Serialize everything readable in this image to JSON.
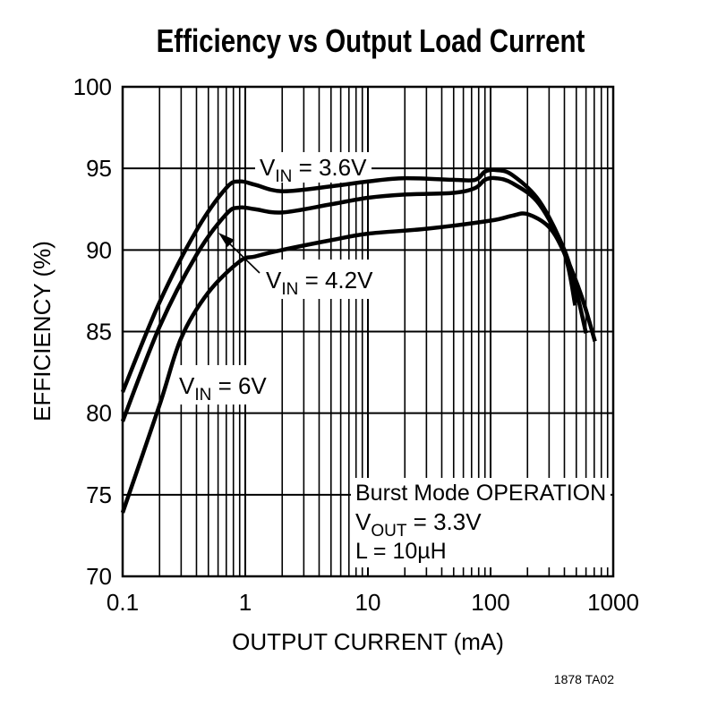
{
  "chart_data": {
    "type": "line",
    "title": "Efficiency vs Output Load Current",
    "xlabel": "OUTPUT CURRENT (mA)",
    "ylabel": "EFFICIENCY (%)",
    "xscale": "log",
    "xlim": [
      0.1,
      1000
    ],
    "ylim": [
      70,
      100
    ],
    "grid": true,
    "xticks": [
      0.1,
      1,
      10,
      100,
      1000
    ],
    "xtick_labels": [
      "0.1",
      "1",
      "10",
      "100",
      "1000"
    ],
    "yticks": [
      70,
      75,
      80,
      85,
      90,
      95,
      100
    ],
    "ytick_labels": [
      "70",
      "75",
      "80",
      "85",
      "90",
      "95",
      "100"
    ],
    "series": [
      {
        "name": "VIN = 3.6V",
        "label_main": "V",
        "label_sub": "IN",
        "label_rest": " = 3.6V",
        "x": [
          0.1,
          0.2,
          0.4,
          0.7,
          0.9,
          1.2,
          2,
          5,
          10,
          20,
          50,
          75,
          90,
          110,
          150,
          250,
          400,
          500,
          600
        ],
        "y": [
          81.3,
          86.8,
          91.2,
          93.8,
          94.2,
          94.0,
          93.6,
          93.9,
          94.2,
          94.4,
          94.3,
          94.3,
          94.8,
          94.9,
          94.6,
          93.0,
          90.0,
          87.5,
          84.9
        ]
      },
      {
        "name": "VIN = 4.2V",
        "label_main": "V",
        "label_sub": "IN",
        "label_rest": " = 4.2V",
        "x": [
          0.1,
          0.2,
          0.4,
          0.7,
          0.9,
          1.2,
          2,
          5,
          10,
          20,
          50,
          75,
          90,
          110,
          150,
          250,
          400,
          490
        ],
        "y": [
          79.5,
          85.3,
          89.7,
          92.2,
          92.6,
          92.5,
          92.3,
          92.8,
          93.2,
          93.4,
          93.5,
          93.8,
          94.3,
          94.4,
          94.1,
          92.8,
          89.8,
          86.6
        ]
      },
      {
        "name": "VIN = 6V",
        "label_main": "V",
        "label_sub": "IN",
        "label_rest": " = 6V",
        "x": [
          0.1,
          0.2,
          0.3,
          0.5,
          0.9,
          1.2,
          2,
          5,
          10,
          30,
          100,
          150,
          200,
          300,
          400,
          550,
          710
        ],
        "y": [
          73.9,
          80.5,
          84.6,
          87.4,
          89.3,
          89.6,
          90.0,
          90.6,
          91.0,
          91.3,
          91.8,
          92.1,
          92.2,
          91.4,
          89.8,
          87.2,
          84.4
        ]
      }
    ],
    "annotations": {
      "line1": "Burst Mode OPERATION",
      "line2_main": "V",
      "line2_sub": "OUT",
      "line2_rest": " = 3.3V",
      "line3": "L = 10µH"
    },
    "figure_code": "1878 TA02",
    "line_color": "#000000"
  }
}
